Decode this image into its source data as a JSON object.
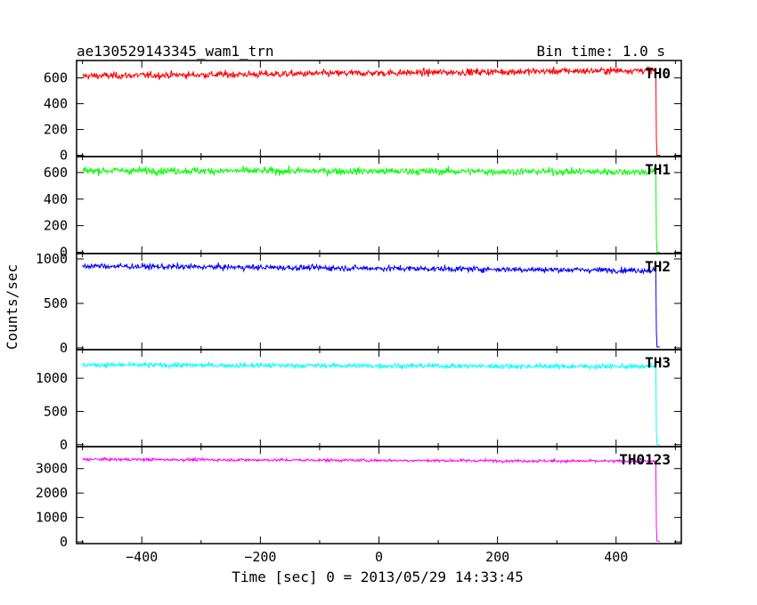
{
  "chart_data": {
    "type": "line",
    "title": "ae130529143345_wam1_trn",
    "subtitle": "Bin time: 1.0 s",
    "xlabel": "Time [sec] 0 = 2013/05/29 14:33:45",
    "ylabel": "Counts/sec",
    "xlim": [
      -510,
      510
    ],
    "x_ticks": [
      -400,
      -200,
      0,
      200,
      400
    ],
    "x_tick_labels": [
      "−400",
      "−200",
      "0",
      "200",
      "400"
    ],
    "grid": false,
    "panels": [
      {
        "name": "TH0",
        "color": "#ff0000",
        "ylim": [
          -10,
          735
        ],
        "y_ticks": [
          0,
          200,
          400,
          600
        ],
        "y_tick_labels": [
          "0",
          "200",
          "400",
          "600"
        ],
        "mean_start": 615,
        "mean_end": 660,
        "noise": 25,
        "data_start": -500,
        "drop_at": 468,
        "drop_level": 120,
        "data_end": 474,
        "end_level": 0
      },
      {
        "name": "TH1",
        "color": "#00ff00",
        "ylim": [
          -10,
          720
        ],
        "y_ticks": [
          0,
          200,
          400,
          600
        ],
        "y_tick_labels": [
          "0",
          "200",
          "400",
          "600"
        ],
        "mean_start": 615,
        "mean_end": 605,
        "noise": 25,
        "data_start": -500,
        "drop_at": 468,
        "drop_level": 110,
        "data_end": 474,
        "end_level": 0
      },
      {
        "name": "TH2",
        "color": "#0000ff",
        "ylim": [
          -20,
          1060
        ],
        "y_ticks": [
          0,
          500,
          1000
        ],
        "y_tick_labels": [
          "0",
          "500",
          "1000"
        ],
        "mean_start": 920,
        "mean_end": 870,
        "noise": 30,
        "data_start": -500,
        "drop_at": 468,
        "drop_level": 180,
        "data_end": 474,
        "end_level": 10
      },
      {
        "name": "TH3",
        "color": "#00ffff",
        "ylim": [
          -30,
          1430
        ],
        "y_ticks": [
          0,
          500,
          1000
        ],
        "y_tick_labels": [
          "0",
          "500",
          "1000"
        ],
        "mean_start": 1200,
        "mean_end": 1175,
        "noise": 35,
        "data_start": -500,
        "drop_at": 468,
        "drop_level": 200,
        "data_end": 474,
        "end_level": 0
      },
      {
        "name": "TH0123",
        "color": "#ff00ff",
        "ylim": [
          -70,
          3900
        ],
        "y_ticks": [
          0,
          1000,
          2000,
          3000
        ],
        "y_tick_labels": [
          "0",
          "1000",
          "2000",
          "3000"
        ],
        "mean_start": 3380,
        "mean_end": 3300,
        "noise": 55,
        "data_start": -500,
        "drop_at": 468,
        "drop_level": 600,
        "data_end": 474,
        "end_level": 30
      }
    ]
  }
}
